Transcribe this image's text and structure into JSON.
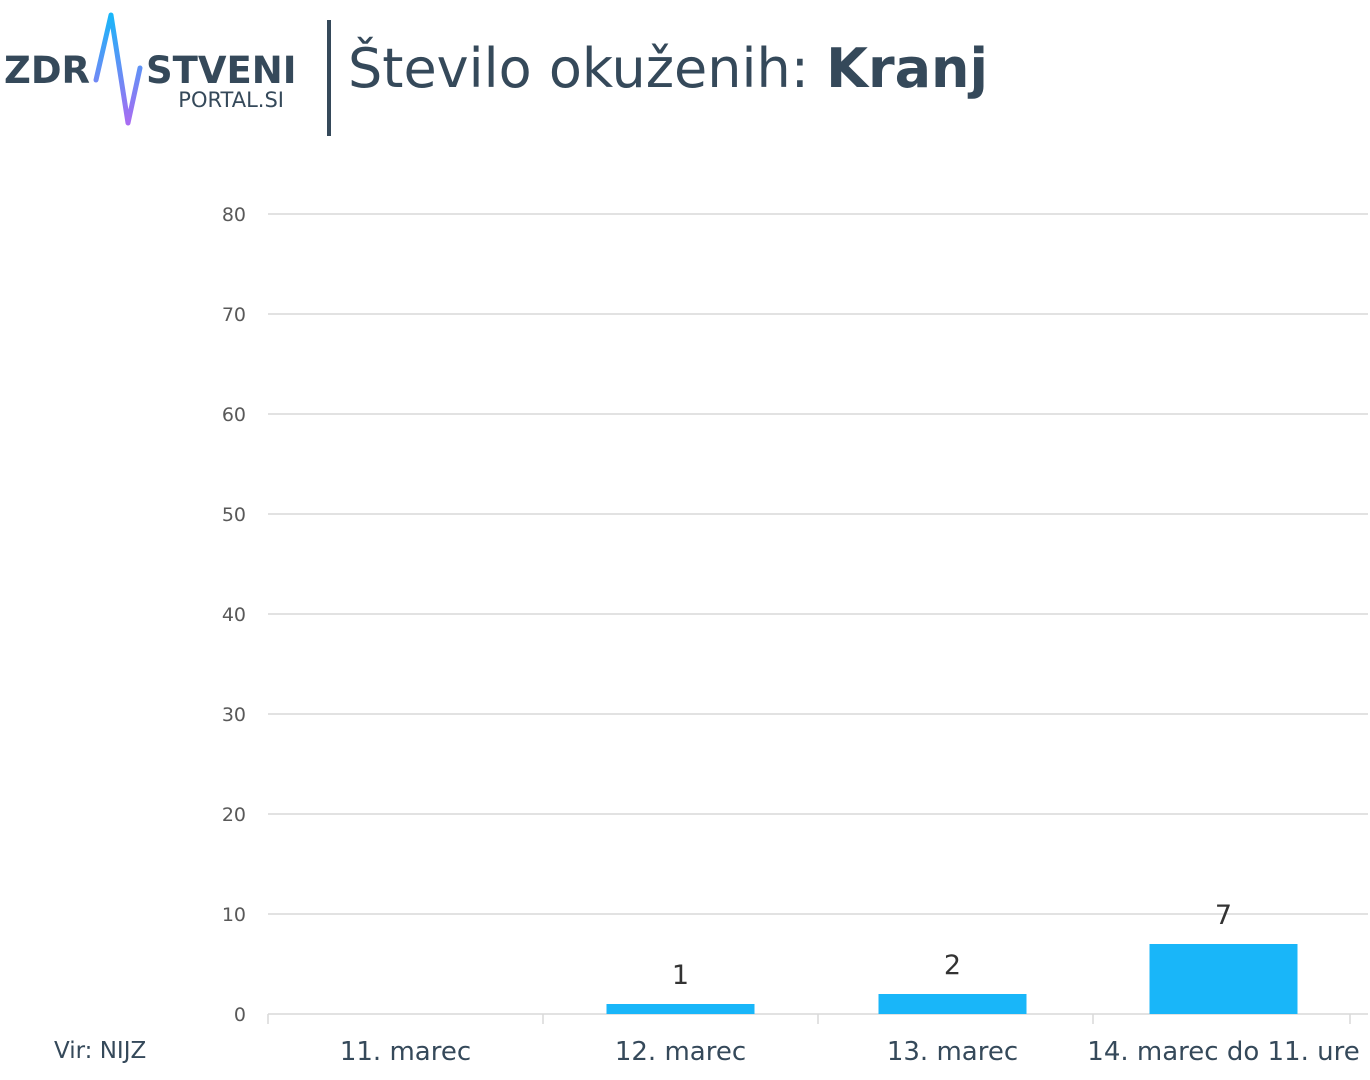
{
  "brand": {
    "name_part1": "ZDR",
    "name_part2": "STVENI",
    "name_sub": "PORTAL.SI",
    "text_color": "#35495a",
    "gradient_top": "#19b6f9",
    "gradient_bottom": "#a86cf2"
  },
  "title": {
    "main": "Število okuženih: ",
    "bold": "Kranj"
  },
  "source": "Vir: NIJZ",
  "colors": {
    "bar": "#19b6f9",
    "grid": "#d9d9d9",
    "axis_text": "#595959",
    "category_text": "#35495a",
    "label_text": "#333333"
  },
  "chart_data": {
    "type": "bar",
    "categories": [
      "11. marec",
      "12. marec",
      "13. marec",
      "14. marec do 11. ure"
    ],
    "values": [
      0,
      1,
      2,
      7
    ],
    "data_labels": [
      "",
      "1",
      "2",
      "7"
    ],
    "ylim": [
      0,
      80
    ],
    "yticks": [
      0,
      10,
      20,
      30,
      40,
      50,
      60,
      70,
      80
    ],
    "grid": true,
    "legend": "none"
  }
}
